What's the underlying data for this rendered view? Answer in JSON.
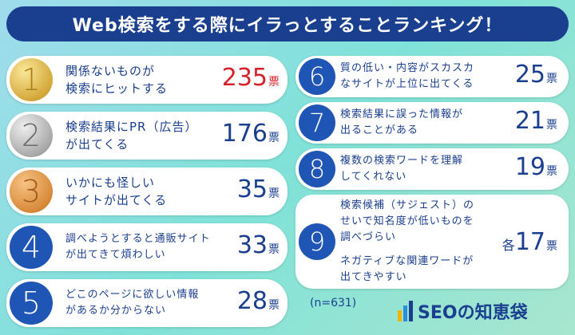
{
  "title": "Web検索をする際にイラっとすることランキング！",
  "unit": "票",
  "left": [
    {
      "rank": "1",
      "lines": [
        "関係ないものが",
        "検索にヒットする"
      ],
      "count": "235"
    },
    {
      "rank": "2",
      "lines": [
        "検索結果にPR（広告）",
        "が出てくる"
      ],
      "count": "176"
    },
    {
      "rank": "3",
      "lines": [
        "いかにも怪しい",
        "サイトが出てくる"
      ],
      "count": "35"
    },
    {
      "rank": "4",
      "lines": [
        "調べようとすると通販サイト",
        "が出てきて煩わしい"
      ],
      "count": "33"
    },
    {
      "rank": "5",
      "lines": [
        "どこのページに欲しい情報",
        "があるか分からない"
      ],
      "count": "28"
    }
  ],
  "right": [
    {
      "rank": "6",
      "lines": [
        "質の低い・内容がスカスカ",
        "なサイトが上位に出てくる"
      ],
      "count": "25"
    },
    {
      "rank": "7",
      "lines": [
        "検索結果に誤った情報が",
        "出ることがある"
      ],
      "count": "21"
    },
    {
      "rank": "8",
      "lines": [
        "複数の検索ワードを理解",
        "してくれない"
      ],
      "count": "19"
    }
  ],
  "ninth": {
    "rank": "9",
    "lines_a": [
      "検索候補（サジェスト）の",
      "せいで知名度が低いものを",
      "調べづらい"
    ],
    "lines_b": [
      "ネガティブな関連ワードが",
      "出てきやすい"
    ],
    "prefix": "各",
    "count": "17"
  },
  "note": "(n=631)",
  "logo": "SEOの知恵袋",
  "colors": {
    "navy": "#1a3f8f",
    "red": "#d8202a",
    "blue_badge": "#1f56b5"
  }
}
